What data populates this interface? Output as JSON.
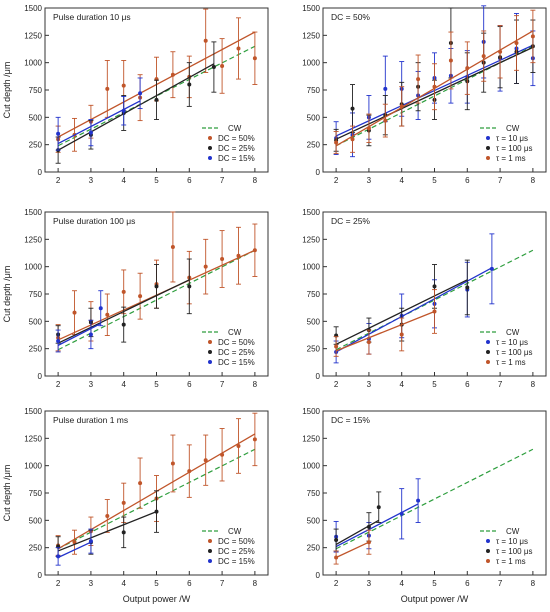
{
  "figure": {
    "shared_xlabel": "Output power /W",
    "shared_ylabel": "Cut depth /μm"
  },
  "chart_data": [
    {
      "type": "scatter",
      "title": "Pulse duration 10 μs",
      "xlabel": "",
      "ylabel": "Cut depth /μm",
      "xlim": [
        1.6,
        8.4
      ],
      "ylim": [
        0,
        1500
      ],
      "xticks": [
        2,
        3,
        4,
        5,
        6,
        7,
        8
      ],
      "yticks": [
        0,
        250,
        500,
        750,
        1000,
        1250,
        1500
      ],
      "grid": false,
      "legend_position": "bottom-right",
      "cw_line": {
        "name": "CW",
        "x": [
          2,
          8
        ],
        "y": [
          240,
          1150
        ],
        "color": "#2e9e3e"
      },
      "series": [
        {
          "name": "DC = 50%",
          "color": "#c0552a",
          "x": [
            2,
            2.5,
            3,
            3.5,
            4,
            4.5,
            5,
            5.5,
            6,
            6.5,
            7,
            7.5,
            8
          ],
          "y": [
            300,
            340,
            460,
            760,
            790,
            680,
            850,
            890,
            870,
            1200,
            970,
            1130,
            1040
          ],
          "err": [
            120,
            150,
            150,
            260,
            230,
            210,
            200,
            210,
            190,
            290,
            250,
            280,
            240
          ],
          "fit": [
            [
              2,
              320
            ],
            [
              8,
              1280
            ]
          ]
        },
        {
          "name": "DC = 25%",
          "color": "#222222",
          "x": [
            2,
            3,
            4,
            5,
            6,
            6.75
          ],
          "y": [
            200,
            340,
            540,
            660,
            800,
            960
          ],
          "err": [
            120,
            130,
            160,
            180,
            200,
            230
          ],
          "fit": [
            [
              2,
              200
            ],
            [
              6.75,
              990
            ]
          ]
        },
        {
          "name": "DC = 15%",
          "color": "#2233cc",
          "x": [
            2,
            3,
            4,
            4.5
          ],
          "y": [
            350,
            360,
            560,
            720
          ],
          "err": [
            150,
            120,
            130,
            140
          ],
          "fit": [
            [
              2,
              260
            ],
            [
              4.5,
              650
            ]
          ]
        }
      ]
    },
    {
      "type": "scatter",
      "title": "DC = 50%",
      "xlabel": "",
      "ylabel": "",
      "xlim": [
        1.6,
        8.4
      ],
      "ylim": [
        0,
        1500
      ],
      "xticks": [
        2,
        3,
        4,
        5,
        6,
        7,
        8
      ],
      "yticks": [
        0,
        250,
        500,
        750,
        1000,
        1250,
        1500
      ],
      "grid": false,
      "legend_position": "bottom-right",
      "cw_line": {
        "name": "CW",
        "x": [
          2,
          8
        ],
        "y": [
          240,
          1150
        ],
        "color": "#2e9e3e"
      },
      "series": [
        {
          "name": "τ =  10 μs",
          "color": "#2233cc",
          "x": [
            2,
            2.5,
            3,
            3.5,
            4,
            4.5,
            5,
            5.5,
            6,
            6.5,
            7,
            7.5,
            8
          ],
          "y": [
            310,
            340,
            500,
            760,
            760,
            700,
            860,
            880,
            870,
            1190,
            1040,
            1130,
            1040
          ],
          "err": [
            150,
            200,
            200,
            300,
            250,
            220,
            230,
            250,
            240,
            330,
            300,
            320,
            250
          ],
          "fit": [
            [
              2,
              330
            ],
            [
              8,
              1160
            ]
          ]
        },
        {
          "name": "τ = 100 μs",
          "color": "#222222",
          "x": [
            2,
            2.5,
            3,
            3.5,
            4,
            4.5,
            5,
            5.5,
            6,
            6.5,
            7,
            7.5,
            8
          ],
          "y": [
            290,
            580,
            380,
            520,
            620,
            780,
            660,
            1180,
            830,
            1000,
            1050,
            1100,
            1150
          ],
          "err": [
            100,
            220,
            140,
            180,
            200,
            220,
            180,
            320,
            260,
            270,
            280,
            290,
            240
          ],
          "fit": [
            [
              2,
              300
            ],
            [
              8,
              1140
            ]
          ]
        },
        {
          "name": "τ =   1 ms",
          "color": "#c0552a",
          "x": [
            2,
            2.5,
            3,
            3.5,
            4,
            4.5,
            5,
            5.5,
            6,
            6.5,
            7,
            7.5,
            8
          ],
          "y": [
            270,
            300,
            400,
            470,
            600,
            850,
            780,
            1020,
            950,
            1060,
            1100,
            1180,
            1240
          ],
          "err": [
            100,
            120,
            130,
            150,
            180,
            220,
            210,
            260,
            240,
            230,
            240,
            250,
            240
          ],
          "fit": [
            [
              2,
              240
            ],
            [
              8,
              1290
            ]
          ]
        }
      ]
    },
    {
      "type": "scatter",
      "title": "Pulse duration 100 μs",
      "xlabel": "",
      "ylabel": "Cut depth /μm",
      "xlim": [
        1.6,
        8.4
      ],
      "ylim": [
        0,
        1500
      ],
      "xticks": [
        2,
        3,
        4,
        5,
        6,
        7,
        8
      ],
      "yticks": [
        0,
        250,
        500,
        750,
        1000,
        1250,
        1500
      ],
      "grid": false,
      "legend_position": "bottom-right",
      "cw_line": {
        "name": "CW",
        "x": [
          2,
          8
        ],
        "y": [
          240,
          1150
        ],
        "color": "#2e9e3e"
      },
      "series": [
        {
          "name": "DC = 50%",
          "color": "#c0552a",
          "x": [
            2,
            2.5,
            3,
            3.5,
            4,
            4.5,
            5,
            5.5,
            6,
            6.5,
            7,
            7.5,
            8
          ],
          "y": [
            350,
            580,
            500,
            560,
            770,
            730,
            840,
            1180,
            900,
            1000,
            1070,
            1100,
            1150
          ],
          "err": [
            120,
            200,
            180,
            190,
            200,
            210,
            220,
            320,
            240,
            250,
            260,
            260,
            240
          ],
          "fit": [
            [
              2,
              330
            ],
            [
              8,
              1150
            ]
          ]
        },
        {
          "name": "DC = 25%",
          "color": "#222222",
          "x": [
            2,
            3,
            4,
            5,
            6
          ],
          "y": [
            380,
            490,
            470,
            820,
            820
          ],
          "err": [
            80,
            130,
            160,
            200,
            250
          ],
          "fit": [
            [
              2,
              300
            ],
            [
              6,
              880
            ]
          ]
        },
        {
          "name": "DC = 15%",
          "color": "#2233cc",
          "x": [
            2,
            3,
            3.3
          ],
          "y": [
            320,
            380,
            620
          ],
          "err": [
            100,
            130,
            160
          ],
          "fit": [
            [
              2,
              280
            ],
            [
              3.3,
              480
            ]
          ]
        }
      ]
    },
    {
      "type": "scatter",
      "title": "DC = 25%",
      "xlabel": "",
      "ylabel": "",
      "xlim": [
        1.6,
        8.4
      ],
      "ylim": [
        0,
        1500
      ],
      "xticks": [
        2,
        3,
        4,
        5,
        6,
        7,
        8
      ],
      "yticks": [
        0,
        250,
        500,
        750,
        1000,
        1250,
        1500
      ],
      "grid": false,
      "legend_position": "bottom-right",
      "cw_line": {
        "name": "CW",
        "x": [
          2,
          8
        ],
        "y": [
          240,
          1150
        ],
        "color": "#2e9e3e"
      },
      "series": [
        {
          "name": "τ =  10 μs",
          "color": "#2233cc",
          "x": [
            2,
            3,
            4,
            5,
            6,
            6.75
          ],
          "y": [
            220,
            340,
            550,
            660,
            790,
            980
          ],
          "err": [
            100,
            140,
            200,
            220,
            250,
            320
          ],
          "fit": [
            [
              2,
              220
            ],
            [
              6.75,
              990
            ]
          ]
        },
        {
          "name": "τ = 100 μs",
          "color": "#222222",
          "x": [
            2,
            3,
            4,
            5,
            6
          ],
          "y": [
            370,
            420,
            470,
            820,
            810
          ],
          "err": [
            80,
            110,
            150,
            200,
            250
          ],
          "fit": [
            [
              2,
              290
            ],
            [
              6,
              880
            ]
          ]
        },
        {
          "name": "τ =   1 ms",
          "color": "#c0552a",
          "x": [
            2,
            3,
            4,
            5
          ],
          "y": [
            270,
            310,
            380,
            590
          ],
          "err": [
            90,
            110,
            150,
            200
          ],
          "fit": [
            [
              2,
              230
            ],
            [
              5,
              590
            ]
          ]
        }
      ]
    },
    {
      "type": "scatter",
      "title": "Pulse duration 1 ms",
      "xlabel": "Output power /W",
      "ylabel": "Cut depth /μm",
      "xlim": [
        1.6,
        8.4
      ],
      "ylim": [
        0,
        1500
      ],
      "xticks": [
        2,
        3,
        4,
        5,
        6,
        7,
        8
      ],
      "yticks": [
        0,
        250,
        500,
        750,
        1000,
        1250,
        1500
      ],
      "grid": false,
      "legend_position": "bottom-right",
      "cw_line": {
        "name": "CW",
        "x": [
          2,
          8
        ],
        "y": [
          240,
          1150
        ],
        "color": "#2e9e3e"
      },
      "series": [
        {
          "name": "DC = 50%",
          "color": "#c0552a",
          "x": [
            2,
            2.5,
            3,
            3.5,
            4,
            4.5,
            5,
            5.5,
            6,
            6.5,
            7,
            7.5,
            8
          ],
          "y": [
            270,
            300,
            400,
            540,
            660,
            840,
            700,
            1020,
            950,
            1050,
            1100,
            1180,
            1240
          ],
          "err": [
            90,
            110,
            130,
            150,
            180,
            230,
            210,
            260,
            240,
            230,
            240,
            250,
            240
          ],
          "fit": [
            [
              2,
              240
            ],
            [
              8,
              1290
            ]
          ]
        },
        {
          "name": "DC = 25%",
          "color": "#222222",
          "x": [
            2,
            3,
            4,
            5
          ],
          "y": [
            260,
            300,
            390,
            580
          ],
          "err": [
            90,
            110,
            140,
            190
          ],
          "fit": [
            [
              2,
              220
            ],
            [
              5,
              580
            ]
          ]
        },
        {
          "name": "DC = 15%",
          "color": "#2233cc",
          "x": [
            2,
            3
          ],
          "y": [
            170,
            310
          ],
          "err": [
            80,
            110
          ],
          "fit": [
            [
              2,
              160
            ],
            [
              3,
              300
            ]
          ]
        }
      ]
    },
    {
      "type": "scatter",
      "title": "DC = 15%",
      "xlabel": "Output power /W",
      "ylabel": "",
      "xlim": [
        1.6,
        8.4
      ],
      "ylim": [
        0,
        1500
      ],
      "xticks": [
        2,
        3,
        4,
        5,
        6,
        7,
        8
      ],
      "yticks": [
        0,
        250,
        500,
        750,
        1000,
        1250,
        1500
      ],
      "grid": false,
      "legend_position": "bottom-right",
      "cw_line": {
        "name": "CW",
        "x": [
          2,
          8
        ],
        "y": [
          240,
          1150
        ],
        "color": "#2e9e3e"
      },
      "series": [
        {
          "name": "τ =  10 μs",
          "color": "#2233cc",
          "x": [
            2,
            3,
            4,
            4.5
          ],
          "y": [
            350,
            360,
            560,
            680
          ],
          "err": [
            140,
            120,
            230,
            200
          ],
          "fit": [
            [
              2,
              260
            ],
            [
              4.5,
              650
            ]
          ]
        },
        {
          "name": "τ = 100 μs",
          "color": "#222222",
          "x": [
            2,
            3,
            3.3
          ],
          "y": [
            320,
            440,
            620
          ],
          "err": [
            100,
            130,
            140
          ],
          "fit": [
            [
              2,
              280
            ],
            [
              3.3,
              500
            ]
          ]
        },
        {
          "name": "τ =   1 ms",
          "color": "#c0552a",
          "x": [
            2,
            3
          ],
          "y": [
            160,
            300
          ],
          "err": [
            60,
            110
          ],
          "fit": [
            [
              2,
              160
            ],
            [
              3,
              300
            ]
          ]
        }
      ]
    }
  ]
}
